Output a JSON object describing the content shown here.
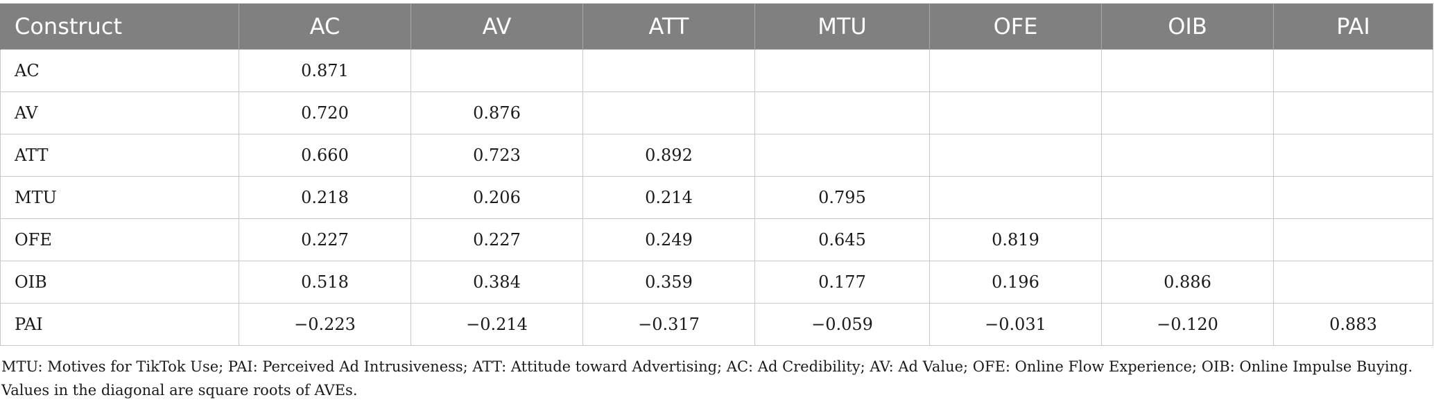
{
  "table": {
    "headers": [
      "Construct",
      "AC",
      "AV",
      "ATT",
      "MTU",
      "OFE",
      "OIB",
      "PAI"
    ],
    "rows": [
      {
        "label": "AC",
        "cells": [
          "0.871",
          "",
          "",
          "",
          "",
          "",
          ""
        ]
      },
      {
        "label": "AV",
        "cells": [
          "0.720",
          "0.876",
          "",
          "",
          "",
          "",
          ""
        ]
      },
      {
        "label": "ATT",
        "cells": [
          "0.660",
          "0.723",
          "0.892",
          "",
          "",
          "",
          ""
        ]
      },
      {
        "label": "MTU",
        "cells": [
          "0.218",
          "0.206",
          "0.214",
          "0.795",
          "",
          "",
          ""
        ]
      },
      {
        "label": "OFE",
        "cells": [
          "0.227",
          "0.227",
          "0.249",
          "0.645",
          "0.819",
          "",
          ""
        ]
      },
      {
        "label": "OIB",
        "cells": [
          "0.518",
          "0.384",
          "0.359",
          "0.177",
          "0.196",
          "0.886",
          ""
        ]
      },
      {
        "label": "PAI",
        "cells": [
          "−0.223",
          "−0.214",
          "−0.317",
          "−0.059",
          "−0.031",
          "−0.120",
          "0.883"
        ]
      }
    ]
  },
  "footnote": "MTU: Motives for TikTok Use; PAI: Perceived Ad Intrusiveness; ATT: Attitude toward Advertising; AC: Ad Credibility; AV: Ad Value; OFE: Online Flow Experience; OIB: Online Impulse Buying. Values in the diagonal are square roots of AVEs."
}
